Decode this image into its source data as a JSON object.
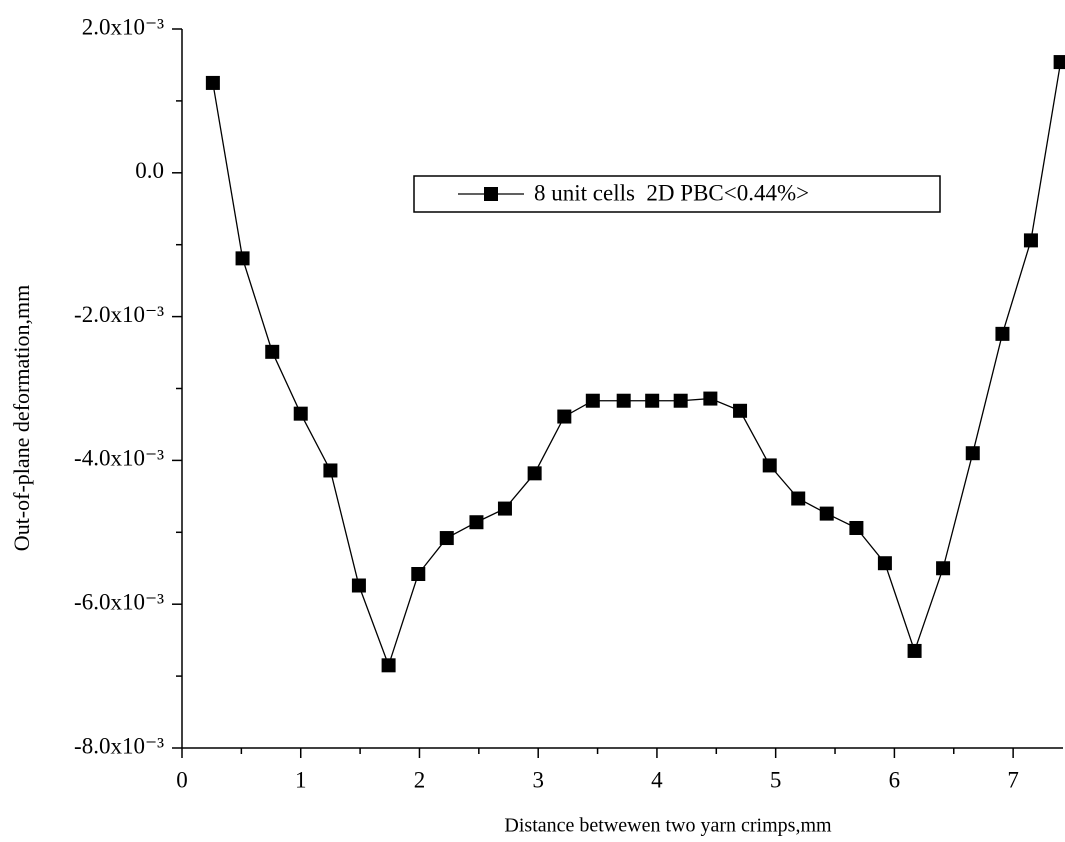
{
  "chart_data": {
    "type": "line",
    "xlabel": "Distance betwewen two yarn crimps,mm",
    "ylabel": "Out-of-plane deformation,mm",
    "x": [
      0.26,
      0.51,
      0.76,
      1.0,
      1.25,
      1.49,
      1.74,
      1.99,
      2.23,
      2.48,
      2.72,
      2.97,
      3.22,
      3.46,
      3.72,
      3.96,
      4.2,
      4.45,
      4.7,
      4.95,
      5.19,
      5.43,
      5.68,
      5.92,
      6.17,
      6.41,
      6.66,
      6.91,
      7.15,
      7.4
    ],
    "series": [
      {
        "name": "8 unit cells  2D PBC<0.44%>",
        "color": "#000000",
        "values": [
          0.00125,
          -0.00119,
          -0.00249,
          -0.00335,
          -0.00414,
          -0.00574,
          -0.00685,
          -0.00558,
          -0.00508,
          -0.00486,
          -0.00467,
          -0.00418,
          -0.00339,
          -0.00317,
          -0.00317,
          -0.00317,
          -0.00317,
          -0.00314,
          -0.00331,
          -0.00407,
          -0.00453,
          -0.00474,
          -0.00494,
          -0.00543,
          -0.00665,
          -0.0055,
          -0.0039,
          -0.00224,
          -0.00094,
          0.00154
        ]
      }
    ],
    "xlim": [
      0,
      7.42
    ],
    "xticks": [
      0,
      1,
      2,
      3,
      4,
      5,
      6,
      7
    ],
    "ylim": [
      -0.008,
      0.002
    ],
    "yticks": [
      {
        "value": -0.008,
        "label": "-8.0x10⁻³"
      },
      {
        "value": -0.006,
        "label": "-6.0x10⁻³"
      },
      {
        "value": -0.004,
        "label": "-4.0x10⁻³"
      },
      {
        "value": -0.002,
        "label": "-2.0x10⁻³"
      },
      {
        "value": 0,
        "label": "0.0"
      },
      {
        "value": 0.002,
        "label": "2.0x10⁻³"
      }
    ],
    "grid": false,
    "legend": "upper center",
    "marker": "square"
  }
}
